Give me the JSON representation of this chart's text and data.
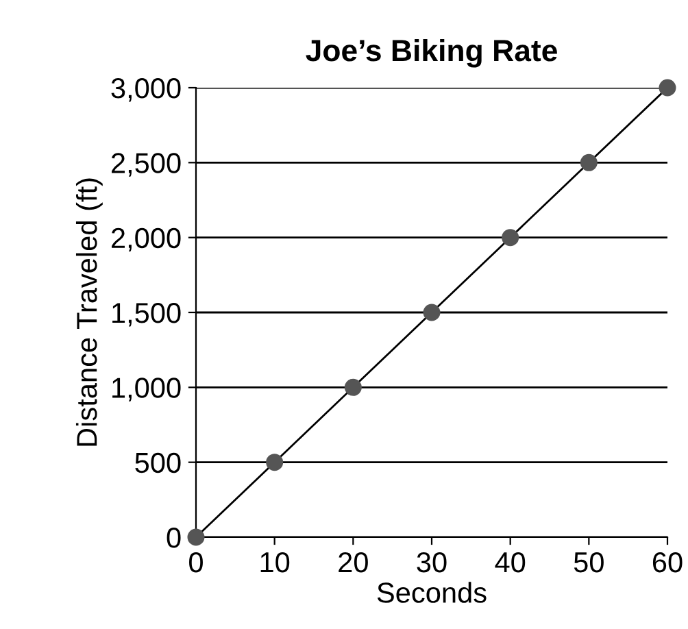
{
  "chart_data": {
    "type": "line",
    "title": "Joe’s Biking Rate",
    "xlabel": "Seconds",
    "ylabel": "Distance Traveled (ft)",
    "x": [
      0,
      10,
      20,
      30,
      40,
      50,
      60
    ],
    "series": [
      {
        "color": "#555555",
        "values": [
          0,
          500,
          1000,
          1500,
          2000,
          2500,
          3000
        ]
      }
    ],
    "xlim": [
      0,
      60
    ],
    "ylim": [
      0,
      3000
    ],
    "xticks": [
      0,
      10,
      20,
      30,
      40,
      50,
      60
    ],
    "yticks": [
      {
        "value": 0,
        "label": "0"
      },
      {
        "value": 500,
        "label": "500"
      },
      {
        "value": 1000,
        "label": "1,000"
      },
      {
        "value": 1500,
        "label": "1,500"
      },
      {
        "value": 2000,
        "label": "2,000"
      },
      {
        "value": 2500,
        "label": "2,500"
      },
      {
        "value": 3000,
        "label": "3,000"
      }
    ],
    "grid": "y",
    "marker": "circle",
    "line_style": "solid",
    "legend": false
  }
}
